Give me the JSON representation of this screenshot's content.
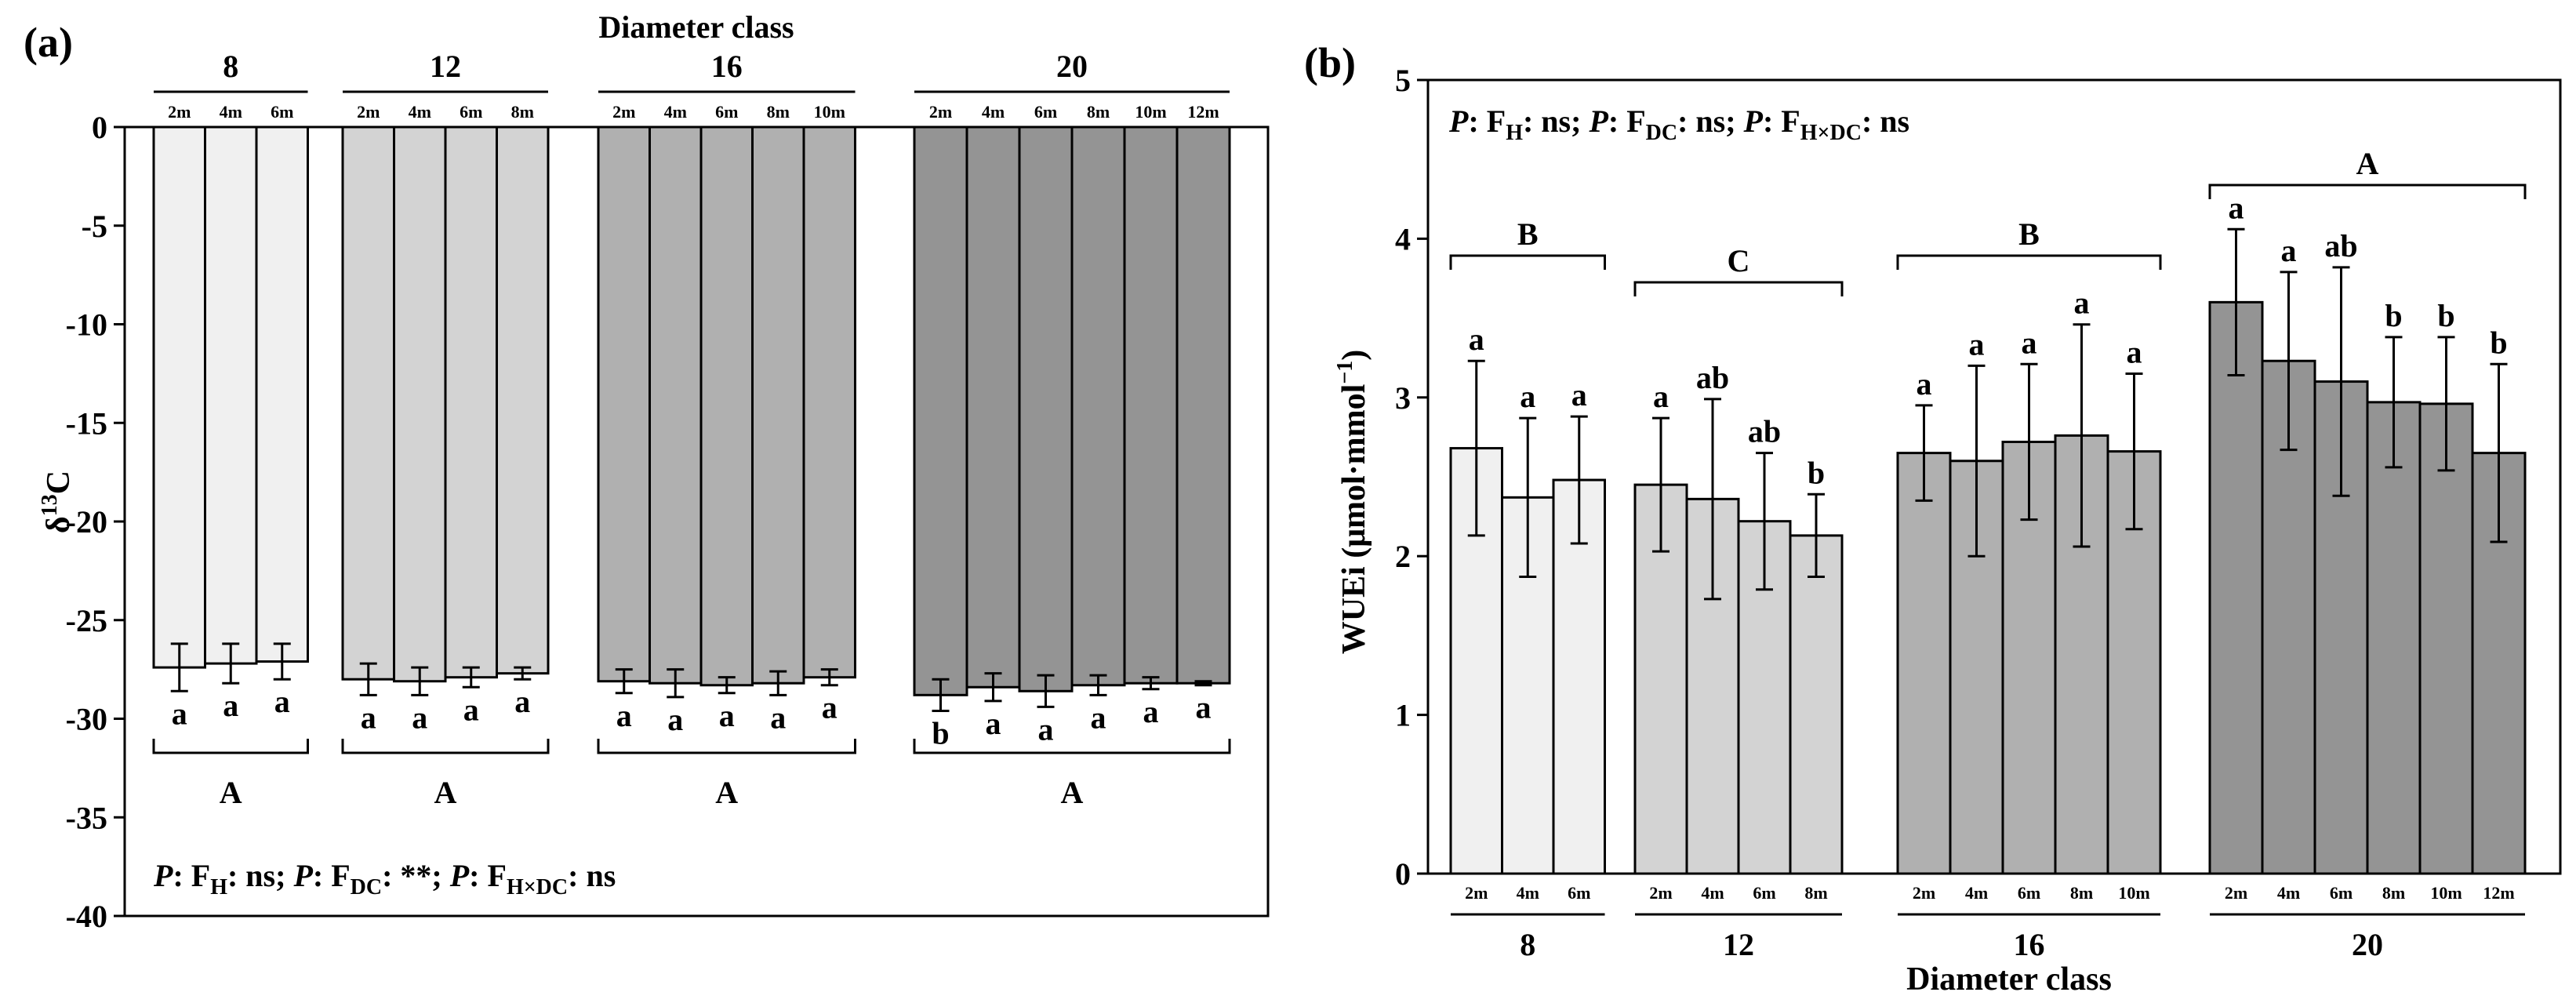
{
  "colors": {
    "d8": "#f0f0f0",
    "d12": "#d3d3d3",
    "d16": "#b0b0b0",
    "d20": "#949494",
    "ink": "#000000"
  },
  "chart_data": [
    {
      "type": "bar",
      "panel_label": "(a)",
      "title": "Diameter class",
      "xlabel": "Diameter class",
      "ylabel_main": "δ",
      "ylabel_sup": "13",
      "ylabel_tail": "C",
      "ylim": [
        -40,
        0
      ],
      "yticks": [
        "0",
        "-5",
        "-10",
        "-15",
        "-20",
        "-25",
        "-30",
        "-35",
        "-40"
      ],
      "yticks_values": [
        0,
        -5,
        -10,
        -15,
        -20,
        -25,
        -30,
        -35,
        -40
      ],
      "groups": [
        {
          "name": "8",
          "letter": "A",
          "heights": [
            "2m",
            "4m",
            "6m"
          ],
          "values": [
            -27.4,
            -27.2,
            -27.1
          ],
          "errors": [
            1.2,
            1.0,
            0.9
          ],
          "letters": [
            "a",
            "a",
            "a"
          ],
          "color": "#f0f0f0"
        },
        {
          "name": "12",
          "letter": "A",
          "heights": [
            "2m",
            "4m",
            "6m",
            "8m"
          ],
          "values": [
            -28.0,
            -28.1,
            -27.9,
            -27.7
          ],
          "errors": [
            0.8,
            0.7,
            0.5,
            0.3
          ],
          "letters": [
            "a",
            "a",
            "a",
            "a"
          ],
          "color": "#d3d3d3"
        },
        {
          "name": "16",
          "letter": "A",
          "heights": [
            "2m",
            "4m",
            "6m",
            "8m",
            "10m"
          ],
          "values": [
            -28.1,
            -28.2,
            -28.3,
            -28.2,
            -27.9
          ],
          "errors": [
            0.6,
            0.7,
            0.4,
            0.6,
            0.4
          ],
          "letters": [
            "a",
            "a",
            "a",
            "a",
            "a"
          ],
          "color": "#b0b0b0"
        },
        {
          "name": "20",
          "letter": "A",
          "heights": [
            "2m",
            "4m",
            "6m",
            "8m",
            "10m",
            "12m"
          ],
          "values": [
            -28.8,
            -28.4,
            -28.6,
            -28.3,
            -28.2,
            -28.2
          ],
          "errors": [
            0.8,
            0.7,
            0.8,
            0.5,
            0.3,
            0.1
          ],
          "letters": [
            "b",
            "a",
            "a",
            "a",
            "a",
            "a"
          ],
          "color": "#949494"
        }
      ],
      "stats": {
        "p1": "P",
        "t1": ": F",
        "s1": "H",
        "r1": ": ns; ",
        "p2": "P",
        "t2": ": F",
        "s2": "DC",
        "r2": ": **; ",
        "p3": "P",
        "t3": ": F",
        "s3": "H×DC",
        "r3": ": ns"
      }
    },
    {
      "type": "bar",
      "panel_label": "(b)",
      "xlabel": "Diameter class",
      "ylabel": "WUEi (μmol·mmol",
      "ylabel_sup": "−1",
      "ylabel_tail": ")",
      "ylim": [
        0,
        5
      ],
      "yticks": [
        "0",
        "1",
        "2",
        "3",
        "4",
        "5"
      ],
      "yticks_values": [
        0,
        1,
        2,
        3,
        4,
        5
      ],
      "groups": [
        {
          "name": "8",
          "letter": "B",
          "heights": [
            "2m",
            "4m",
            "6m"
          ],
          "values": [
            2.68,
            2.37,
            2.48
          ],
          "errors": [
            0.55,
            0.5,
            0.4
          ],
          "letters": [
            "a",
            "a",
            "a"
          ],
          "color": "#f0f0f0"
        },
        {
          "name": "12",
          "letter": "C",
          "heights": [
            "2m",
            "4m",
            "6m",
            "8m"
          ],
          "values": [
            2.45,
            2.36,
            2.22,
            2.13
          ],
          "errors": [
            0.42,
            0.63,
            0.43,
            0.26
          ],
          "letters": [
            "a",
            "ab",
            "ab",
            "b"
          ],
          "color": "#d3d3d3"
        },
        {
          "name": "16",
          "letter": "B",
          "heights": [
            "2m",
            "4m",
            "6m",
            "8m",
            "10m"
          ],
          "values": [
            2.65,
            2.6,
            2.72,
            2.76,
            2.66
          ],
          "errors": [
            0.3,
            0.6,
            0.49,
            0.7,
            0.49
          ],
          "letters": [
            "a",
            "a",
            "a",
            "a",
            "a"
          ],
          "color": "#b0b0b0"
        },
        {
          "name": "20",
          "letter": "A",
          "heights": [
            "2m",
            "4m",
            "6m",
            "8m",
            "10m",
            "12m"
          ],
          "values": [
            3.6,
            3.23,
            3.1,
            2.97,
            2.96,
            2.65
          ],
          "errors": [
            0.46,
            0.56,
            0.72,
            0.41,
            0.42,
            0.56
          ],
          "letters": [
            "a",
            "a",
            "ab",
            "b",
            "b",
            "b"
          ],
          "color": "#949494"
        }
      ],
      "stats": {
        "p1": "P",
        "t1": ": F",
        "s1": "H",
        "r1": ": ns; ",
        "p2": "P",
        "t2": ": F",
        "s2": "DC",
        "r2": ": ns; ",
        "p3": "P",
        "t3": ": F",
        "s3": "H×DC",
        "r3": ": ns"
      }
    }
  ]
}
